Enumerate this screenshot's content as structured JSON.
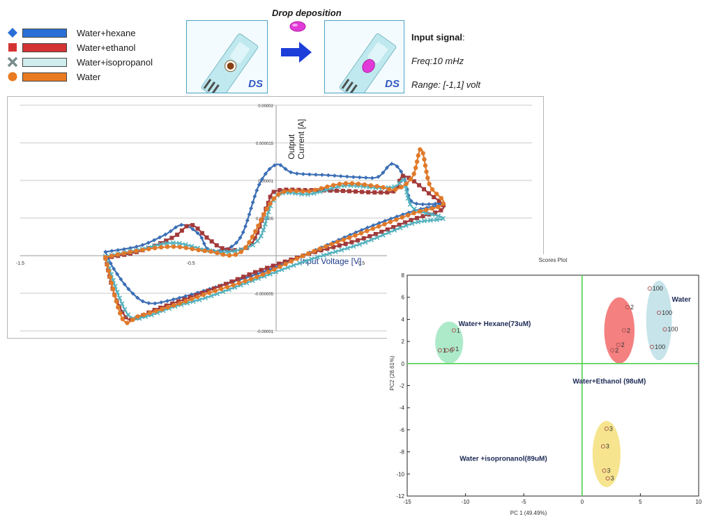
{
  "legend": [
    {
      "label": "Water+hexane",
      "marker": "diamond",
      "color": "#2a6fd6",
      "fill": "#2a6fd6"
    },
    {
      "label": "Water+ethanol",
      "marker": "square",
      "color": "#d43333",
      "fill": "#d43333"
    },
    {
      "label": "Water+isopropanol",
      "marker": "cross",
      "color": "#9fd3d3",
      "fill": "#cfeded"
    },
    {
      "label": "Water",
      "marker": "circle",
      "color": "#e87a22",
      "fill": "#e87a22"
    }
  ],
  "header": {
    "drop_title": "Drop deposition",
    "sensor_logo": "DS",
    "signal_title": "Input signal",
    "signal_colon": ":",
    "freq": "Freq:10 mHz",
    "range": "Range: [-1,1] volt"
  },
  "chart_data": [
    {
      "type": "line",
      "title": "",
      "xlabel": "Input Voltage [V]",
      "ylabel": "Output Current [A]",
      "xlim": [
        -1.5,
        1.5
      ],
      "ylim": [
        -1e-05,
        2e-05
      ],
      "x_ticks": [
        -1.5,
        -0.5,
        0.5
      ],
      "x_tick_labels": [
        "-1.5",
        "-0.5",
        "0.5"
      ],
      "y_ticks": [
        2e-05,
        1.5e-05,
        1e-05,
        5e-06,
        -5e-06,
        -1e-05
      ],
      "y_tick_labels": [
        "0.00002",
        "0.000015",
        "0.00001",
        "0.000005",
        "-0.000005",
        "-0.00001"
      ],
      "grid": true,
      "series": [
        {
          "name": "Water+hexane",
          "color": "#3c6fb5",
          "marker": "diamond",
          "x": [
            -1,
            -0.8,
            -0.65,
            -0.55,
            -0.45,
            -0.4,
            -0.3,
            -0.2,
            -0.1,
            0,
            0.1,
            0.3,
            0.5,
            0.6,
            0.68,
            0.75,
            0.8,
            0.98,
            0.8,
            0.5,
            0,
            -0.3,
            -0.6,
            -0.75,
            -0.85,
            -0.95,
            -1
          ],
          "y": [
            5e-07,
            1.3e-06,
            2.8e-06,
            4.1e-06,
            2.8e-06,
            9e-07,
            8e-07,
            2.8e-06,
            9.4e-06,
            1.21e-05,
            1.1e-05,
            1.07e-05,
            1.04e-05,
            1.05e-05,
            1.22e-05,
            1.05e-05,
            7.1e-06,
            6.9e-06,
            5.9e-06,
            3.4e-06,
            -1.5e-06,
            -3.8e-06,
            -5.8e-06,
            -6.3e-06,
            -4.8e-06,
            -1.8e-06,
            5e-07
          ]
        },
        {
          "name": "Water+ethanol",
          "color": "#a33a3a",
          "marker": "square",
          "x": [
            -1,
            -0.8,
            -0.6,
            -0.5,
            -0.4,
            -0.3,
            -0.15,
            -0.05,
            0,
            0.2,
            0.4,
            0.6,
            0.7,
            0.75,
            0.9,
            0.98,
            0.8,
            0.5,
            0.2,
            -0.1,
            -0.3,
            -0.5,
            -0.7,
            -0.82,
            -0.88,
            -0.95,
            -1
          ],
          "y": [
            -3e-07,
            6e-07,
            2.5e-06,
            4.1e-06,
            2.3e-06,
            9e-07,
            1.4e-06,
            6.8e-06,
            8.6e-06,
            8.7e-06,
            8.6e-06,
            8.4e-06,
            8.7e-06,
            1.06e-05,
            8.2e-06,
            6.3e-06,
            4.8e-06,
            2.2e-06,
            3e-07,
            -2e-06,
            -3.8e-06,
            -5.5e-06,
            -7.1e-06,
            -8.3e-06,
            -8.2e-06,
            -5e-06,
            -3e-07
          ]
        },
        {
          "name": "Water+isopropanol",
          "color": "#52b1bd",
          "marker": "cross",
          "x": [
            -1,
            -0.8,
            -0.6,
            -0.4,
            -0.25,
            -0.1,
            0,
            0.2,
            0.4,
            0.6,
            0.7,
            0.75,
            0.8,
            0.98,
            0.8,
            0.5,
            0.2,
            -0.1,
            -0.4,
            -0.6,
            -0.75,
            -0.85,
            -0.92,
            -1
          ],
          "y": [
            -1e-07,
            8e-07,
            1.7e-06,
            7e-07,
            6e-07,
            2.2e-06,
            7.9e-06,
            8.2e-06,
            9.3e-06,
            9e-06,
            9.2e-06,
            1e-05,
            6.4e-06,
            5e-06,
            4.3e-06,
            1.6e-06,
            -5e-07,
            -3e-06,
            -5.5e-06,
            -6.8e-06,
            -8e-06,
            -8.2e-06,
            -5.5e-06,
            -1e-07
          ]
        },
        {
          "name": "Water",
          "color": "#e07a2a",
          "marker": "circle",
          "x": [
            -1,
            -0.8,
            -0.6,
            -0.4,
            -0.2,
            0,
            0.2,
            0.4,
            0.6,
            0.7,
            0.8,
            0.85,
            0.9,
            0.98,
            0.8,
            0.5,
            0.2,
            -0.1,
            -0.4,
            -0.6,
            -0.8,
            -0.9,
            -1
          ],
          "y": [
            -2e-07,
            7e-07,
            1.2e-06,
            6e-07,
            6e-07,
            7.9e-06,
            8.6e-06,
            9.6e-06,
            9.2e-06,
            8.8e-06,
            1.05e-05,
            1.42e-05,
            9.4e-06,
            6.9e-06,
            5.6e-06,
            3e-06,
            4e-07,
            -2.7e-06,
            -5e-06,
            -6.6e-06,
            -8e-06,
            -8.4e-06,
            -4e-07
          ]
        }
      ]
    },
    {
      "type": "scatter",
      "title": "Scores Plot",
      "xlabel": "PC 1 (49.49%)",
      "ylabel": "PC2 (28.61%)",
      "xlim": [
        -15,
        10
      ],
      "ylim": [
        -12,
        8
      ],
      "x_ticks": [
        -15,
        -10,
        -5,
        0,
        5,
        10
      ],
      "y_ticks": [
        8,
        6,
        4,
        2,
        0,
        -2,
        -4,
        -6,
        -8,
        -10,
        -12
      ],
      "groups": [
        {
          "name": "Water+ Hexane(73uM)",
          "color": "#9fe6c0",
          "label_pos": [
            -10.6,
            3.4
          ],
          "ellipse": {
            "cx": -11.4,
            "cy": 1.9,
            "rx": 1.2,
            "ry": 1.9
          },
          "points": [
            {
              "x": -11,
              "y": 3,
              "label": "1"
            },
            {
              "x": -12.2,
              "y": 1.2,
              "label": "1"
            },
            {
              "x": -11.6,
              "y": 1.2,
              "label": "0"
            },
            {
              "x": -11.1,
              "y": 1.3,
              "label": "1"
            }
          ]
        },
        {
          "name": "Water+Ethanol (98uM)",
          "color": "#f26a6a",
          "label_pos": [
            -0.8,
            -1.8
          ],
          "ellipse": {
            "cx": 3.2,
            "cy": 3.0,
            "rx": 1.3,
            "ry": 3.0
          },
          "points": [
            {
              "x": 3.9,
              "y": 5.1,
              "label": "2"
            },
            {
              "x": 3.6,
              "y": 3.0,
              "label": "2"
            },
            {
              "x": 3.1,
              "y": 1.7,
              "label": "2"
            },
            {
              "x": 2.6,
              "y": 1.2,
              "label": "2"
            }
          ]
        },
        {
          "name": "Water",
          "color": "#bcdfe6",
          "label_pos": [
            7.7,
            5.6
          ],
          "ellipse": {
            "cx": 6.6,
            "cy": 3.9,
            "rx": 1.1,
            "ry": 3.6
          },
          "points": [
            {
              "x": 5.8,
              "y": 6.8,
              "label": "100"
            },
            {
              "x": 6.6,
              "y": 4.6,
              "label": "100"
            },
            {
              "x": 7.1,
              "y": 3.1,
              "label": "100"
            },
            {
              "x": 6.0,
              "y": 1.5,
              "label": "100"
            }
          ]
        },
        {
          "name": "Water +isopronanol(89uM)",
          "color": "#f5e07a",
          "label_pos": [
            -10.5,
            -8.8
          ],
          "ellipse": {
            "cx": 2.1,
            "cy": -8.2,
            "rx": 1.2,
            "ry": 3.0
          },
          "points": [
            {
              "x": 2.1,
              "y": -5.9,
              "label": "3"
            },
            {
              "x": 1.8,
              "y": -7.5,
              "label": "3"
            },
            {
              "x": 1.9,
              "y": -9.7,
              "label": "3"
            },
            {
              "x": 2.2,
              "y": -10.4,
              "label": "3"
            }
          ]
        }
      ]
    }
  ]
}
